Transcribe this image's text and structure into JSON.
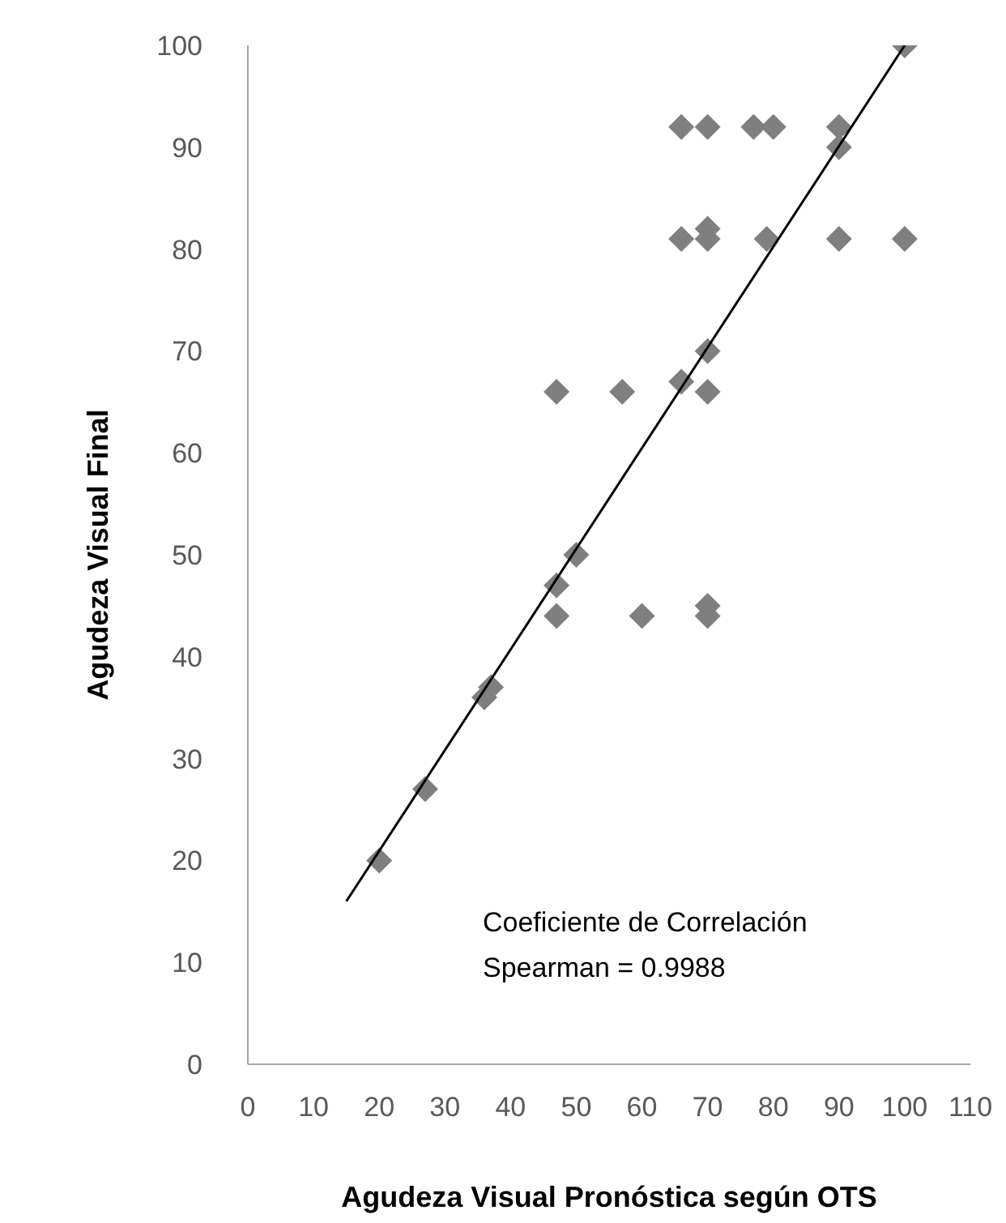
{
  "chart_data": {
    "type": "scatter",
    "xlabel": "Agudeza Visual Pronóstica según OTS",
    "ylabel": "Agudeza Visual Final",
    "xlim": [
      0,
      110
    ],
    "xticks": [
      0,
      10,
      20,
      30,
      40,
      50,
      60,
      70,
      80,
      90,
      100,
      110
    ],
    "ylim": [
      0,
      100
    ],
    "yticks": [
      0,
      10,
      20,
      30,
      40,
      50,
      60,
      70,
      80,
      90,
      100
    ],
    "marker": "diamond",
    "annotations": [
      "Coeficiente de Correlación\nSpearman = 0.9988"
    ],
    "series": [
      {
        "color": "#7f7f7f",
        "x": [
          100,
          66,
          70,
          77,
          80,
          90,
          90,
          66,
          70,
          70,
          79,
          90,
          100,
          70,
          47,
          57,
          66,
          70,
          50,
          47,
          47,
          60,
          70,
          70,
          36,
          37,
          27,
          20
        ],
        "values": [
          100,
          92,
          92,
          92,
          92,
          92,
          90,
          81,
          81,
          82,
          81,
          81,
          81,
          70,
          66,
          66,
          67,
          66,
          50,
          47,
          44,
          44,
          45,
          44,
          36,
          37,
          27,
          20
        ]
      },
      {
        "type": "line",
        "color": "#000000",
        "marker": "none",
        "line_style": "solid",
        "x": [
          15,
          100
        ],
        "values": [
          16,
          100
        ]
      }
    ]
  }
}
